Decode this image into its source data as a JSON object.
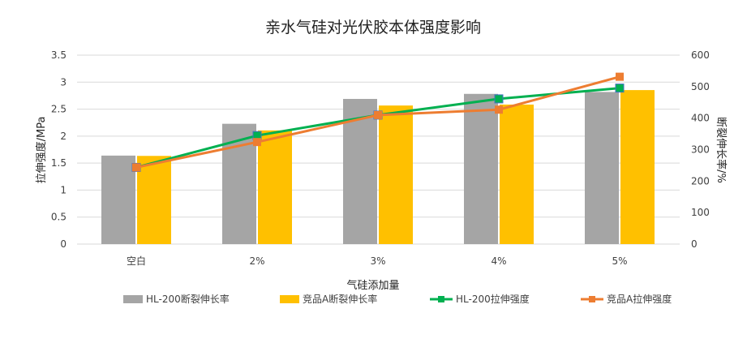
{
  "chart_data": {
    "type": "bar+line",
    "title": "亲水气硅对光伏胶本体强度影响",
    "xlabel": "气硅添加量",
    "ylabel_left": "拉伸强度/MPa",
    "ylabel_right": "断裂伸长率/%",
    "categories": [
      "空白",
      "2%",
      "3%",
      "4%",
      "5%"
    ],
    "ylim_left": [
      0,
      3.5
    ],
    "yticks_left": [
      "0",
      "0.5",
      "1",
      "1.5",
      "2",
      "2.5",
      "3",
      "3.5"
    ],
    "ylim_right": [
      0,
      600
    ],
    "yticks_right": [
      "0",
      "100",
      "200",
      "300",
      "400",
      "500",
      "600"
    ],
    "grid": true,
    "legend_position": "bottom",
    "series": [
      {
        "name": "HL-200断裂伸长率",
        "type": "bar",
        "axis": "right",
        "color": "#a5a5a5",
        "values": [
          281,
          382,
          461,
          477,
          483
        ]
      },
      {
        "name": "竞品A断裂伸长率",
        "type": "bar",
        "axis": "right",
        "color": "#ffc000",
        "values": [
          280,
          361,
          440,
          443,
          489
        ]
      },
      {
        "name": "HL-200拉伸强度",
        "type": "line",
        "axis": "left",
        "color": "#00b050",
        "values": [
          1.42,
          2.01,
          2.39,
          2.69,
          2.89
        ]
      },
      {
        "name": "竞品A拉伸强度",
        "type": "line",
        "axis": "left",
        "color": "#ed7d31",
        "values": [
          1.42,
          1.89,
          2.39,
          2.49,
          3.1
        ]
      }
    ]
  }
}
